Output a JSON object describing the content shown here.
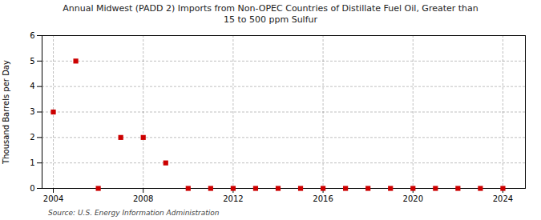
{
  "chart_data": {
    "type": "scatter",
    "title": "Annual Midwest (PADD 2) Imports from Non-OPEC Countries of Distillate Fuel Oil, Greater than\n15 to 500 ppm Sulfur",
    "ylabel": "Thousand Barrels per Day",
    "source": "Source: U.S. Energy Information Administration",
    "x": [
      2004,
      2005,
      2006,
      2007,
      2008,
      2009,
      2010,
      2011,
      2012,
      2013,
      2014,
      2015,
      2016,
      2017,
      2018,
      2019,
      2020,
      2021,
      2022,
      2023,
      2024
    ],
    "values": [
      3,
      5,
      0,
      2,
      2,
      1,
      0,
      0,
      0,
      0,
      0,
      0,
      0,
      0,
      0,
      0,
      0,
      0,
      0,
      0,
      0
    ],
    "color": "#cc0000",
    "marker": "square",
    "xlim": [
      2003.5,
      2025
    ],
    "ylim": [
      0,
      6
    ],
    "xticks": [
      2004,
      2008,
      2012,
      2016,
      2020,
      2024
    ],
    "yticks": [
      0,
      1,
      2,
      3,
      4,
      5,
      6
    ],
    "grid": true
  }
}
